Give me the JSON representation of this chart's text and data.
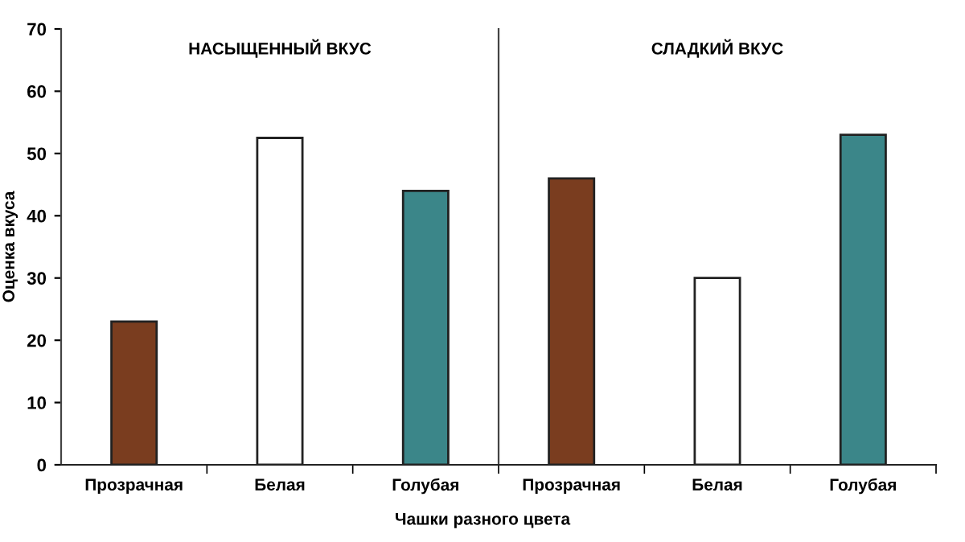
{
  "chart_data": [
    {
      "type": "bar",
      "title": "НАСЫЩЕННЫЙ ВКУС",
      "ylabel": "Оценка вкуса",
      "xlabel": "Чашки разного цвета",
      "categories": [
        "Прозрачная",
        "Белая",
        "Голубая"
      ],
      "values": [
        23,
        52.5,
        44
      ],
      "colors": [
        "#7a3d1f",
        "#ffffff",
        "#3b8689"
      ],
      "ylim": [
        0,
        70
      ],
      "yticks": [
        0,
        10,
        20,
        30,
        40,
        50,
        60,
        70
      ],
      "grid": false,
      "legend": false
    },
    {
      "type": "bar",
      "title": "СЛАДКИЙ ВКУС",
      "categories": [
        "Прозрачная",
        "Белая",
        "Голубая"
      ],
      "values": [
        46,
        30,
        53
      ],
      "colors": [
        "#7a3d1f",
        "#ffffff",
        "#3b8689"
      ],
      "ylim": [
        0,
        70
      ],
      "tick_labels": "x",
      "grid": false,
      "legend": false
    }
  ]
}
